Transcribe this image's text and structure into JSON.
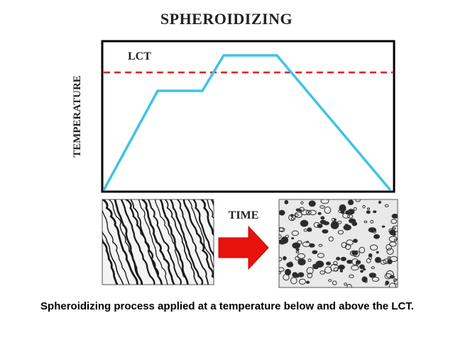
{
  "title": "SPHEROIDIZING",
  "diagram": {
    "lct_label": "LCT",
    "y_axis_label": "TEMPERATURE",
    "x_axis_label": "TIME",
    "colors": {
      "profile_line": "#3ec3e6",
      "lct_line": "#e02020",
      "arrow": "#e8120c",
      "frame": "#000000"
    },
    "left_micrograph": "lamellar-pearlite-micrograph",
    "right_micrograph": "spheroidite-micrograph",
    "arrow_icon": "right-arrow-icon"
  },
  "caption": "Spheroidizing process applied at a temperature below and above the LCT."
}
